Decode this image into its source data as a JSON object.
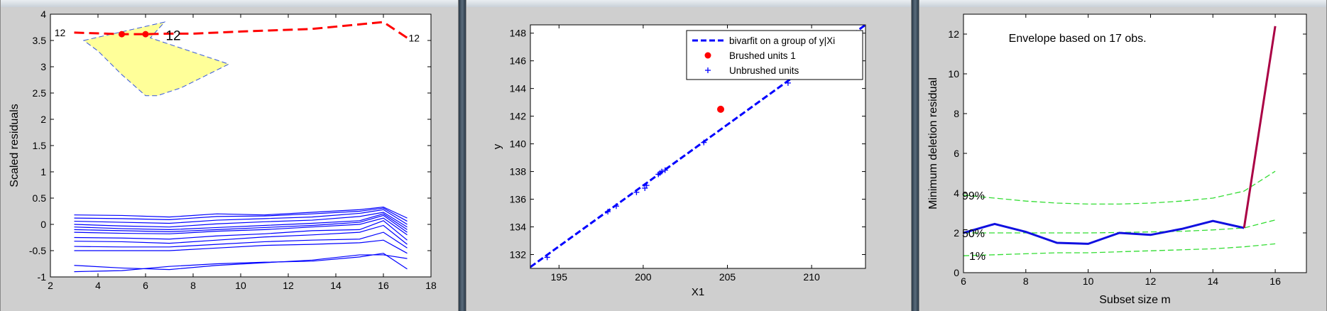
{
  "colors": {
    "window_bg": "#cfcfcf",
    "axes_bg": "#ffffff",
    "residual_lines": "#0000ff",
    "highlight_trajectory": "#ff0000",
    "selection_region": "#ffff99",
    "fit_line": "#0000ff",
    "envelope": "#33dd33",
    "trajectory": "#1010e0",
    "jump_segment": "#aa0044"
  },
  "chart_data": [
    {
      "type": "line",
      "title": "",
      "xlabel": "",
      "ylabel": "Scaled residuals",
      "xlim": [
        2,
        18
      ],
      "ylim": [
        -1,
        4
      ],
      "xticks": [
        2,
        4,
        6,
        8,
        10,
        12,
        14,
        16,
        18
      ],
      "yticks": [
        -1,
        -0.5,
        0,
        0.5,
        1,
        1.5,
        2,
        2.5,
        3,
        3.5,
        4
      ],
      "x": [
        3,
        5,
        7,
        9,
        11,
        13,
        15,
        16,
        17
      ],
      "highlight": {
        "unit_label": "12",
        "x": [
          3,
          5,
          6,
          7,
          8,
          10,
          13,
          16,
          17
        ],
        "values": [
          3.65,
          3.62,
          3.62,
          3.63,
          3.63,
          3.67,
          3.72,
          3.85,
          3.55
        ],
        "markers_x": [
          5,
          6
        ],
        "markers_y": [
          3.62,
          3.62
        ],
        "label_positions": [
          "left-start",
          "near-markers",
          "right-end"
        ]
      },
      "selection_region": {
        "polygon": [
          [
            3.4,
            3.5
          ],
          [
            6.8,
            3.85
          ],
          [
            6.2,
            3.55
          ],
          [
            9.5,
            3.05
          ],
          [
            7.5,
            2.6
          ],
          [
            6.5,
            2.45
          ],
          [
            6.0,
            2.45
          ],
          [
            5.0,
            2.85
          ],
          [
            4.0,
            3.3
          ]
        ]
      },
      "series": [
        {
          "values": [
            0.18,
            0.17,
            0.14,
            0.2,
            0.18,
            0.23,
            0.28,
            0.33,
            0.12
          ]
        },
        {
          "values": [
            0.12,
            0.11,
            0.09,
            0.15,
            0.16,
            0.2,
            0.25,
            0.31,
            0.06
          ]
        },
        {
          "values": [
            0.06,
            0.04,
            0.02,
            0.08,
            0.11,
            0.14,
            0.21,
            0.28,
            0.0
          ]
        },
        {
          "values": [
            0.0,
            -0.03,
            -0.05,
            0.01,
            0.05,
            0.08,
            0.15,
            0.23,
            -0.05
          ]
        },
        {
          "values": [
            -0.05,
            -0.08,
            -0.1,
            -0.06,
            -0.02,
            0.02,
            0.07,
            0.2,
            -0.1
          ]
        },
        {
          "values": [
            -0.1,
            -0.12,
            -0.14,
            -0.1,
            -0.06,
            -0.02,
            0.04,
            0.17,
            -0.15
          ]
        },
        {
          "values": [
            -0.15,
            -0.17,
            -0.18,
            -0.13,
            -0.1,
            -0.05,
            0.0,
            0.12,
            -0.2
          ]
        },
        {
          "values": [
            -0.25,
            -0.26,
            -0.28,
            -0.22,
            -0.18,
            -0.12,
            -0.1,
            0.07,
            -0.3
          ]
        },
        {
          "values": [
            -0.32,
            -0.33,
            -0.36,
            -0.3,
            -0.24,
            -0.2,
            -0.15,
            -0.02,
            -0.38
          ]
        },
        {
          "values": [
            -0.42,
            -0.43,
            -0.43,
            -0.38,
            -0.33,
            -0.3,
            -0.28,
            -0.15,
            -0.45
          ]
        },
        {
          "values": [
            -0.5,
            -0.5,
            -0.5,
            -0.45,
            -0.4,
            -0.38,
            -0.35,
            -0.3,
            -0.55
          ]
        },
        {
          "values": [
            -0.78,
            -0.83,
            -0.86,
            -0.78,
            -0.73,
            -0.68,
            -0.58,
            -0.58,
            -0.65
          ]
        },
        {
          "values": [
            -0.9,
            -0.88,
            -0.8,
            -0.75,
            -0.72,
            -0.7,
            -0.62,
            -0.55,
            -0.85
          ]
        }
      ]
    },
    {
      "type": "scatter",
      "title": "",
      "xlabel": "X1",
      "ylabel": "y",
      "xlim": [
        193.3,
        213.2
      ],
      "ylim": [
        131,
        148.6
      ],
      "xticks": [
        195,
        200,
        205,
        210
      ],
      "yticks": [
        132,
        134,
        136,
        138,
        140,
        142,
        144,
        146,
        148
      ],
      "legend": {
        "position": "top-right",
        "entries": [
          "bivarfit on a group of y|Xi",
          "Brushed units 1",
          "Unbrushed units"
        ]
      },
      "fit_line": {
        "name": "bivarfit on a group of y|Xi",
        "x": [
          193.3,
          213.2
        ],
        "y": [
          131.1,
          148.6
        ]
      },
      "brushed": {
        "name": "Brushed units 1",
        "x": [
          204.6
        ],
        "y": [
          142.5
        ]
      },
      "unbrushed": {
        "name": "Unbrushed units",
        "x": [
          194.3,
          197.9,
          198.4,
          199.6,
          200.1,
          200.2,
          200.9,
          201.0,
          201.1,
          201.3,
          203.6,
          208.6
        ],
        "y": [
          131.8,
          135.1,
          135.5,
          136.5,
          136.8,
          137.0,
          137.8,
          137.9,
          138.0,
          138.1,
          140.1,
          144.4
        ]
      }
    },
    {
      "type": "line",
      "title": "",
      "xlabel": "Subset size m",
      "ylabel": "Minimum deletion residual",
      "xlim": [
        6,
        17
      ],
      "ylim": [
        0,
        13
      ],
      "xticks": [
        6,
        8,
        10,
        12,
        14,
        16
      ],
      "yticks": [
        0,
        2,
        4,
        6,
        8,
        10,
        12
      ],
      "annotation": "Envelope based on 17 obs.",
      "envelope_labels": [
        "99%",
        "50%",
        "1%"
      ],
      "x": [
        6,
        7,
        8,
        9,
        10,
        11,
        12,
        13,
        14,
        15,
        16
      ],
      "trajectory": [
        2.0,
        2.45,
        2.05,
        1.5,
        1.45,
        2.0,
        1.9,
        2.2,
        2.6,
        2.25,
        12.4
      ],
      "envelope_99": [
        3.9,
        3.75,
        3.6,
        3.5,
        3.45,
        3.45,
        3.5,
        3.6,
        3.75,
        4.1,
        5.1
      ],
      "envelope_50": [
        2.0,
        2.0,
        2.0,
        2.0,
        2.0,
        2.02,
        2.05,
        2.08,
        2.15,
        2.25,
        2.65
      ],
      "envelope_1": [
        0.85,
        0.9,
        0.95,
        1.0,
        1.0,
        1.05,
        1.1,
        1.15,
        1.2,
        1.3,
        1.45
      ]
    }
  ]
}
